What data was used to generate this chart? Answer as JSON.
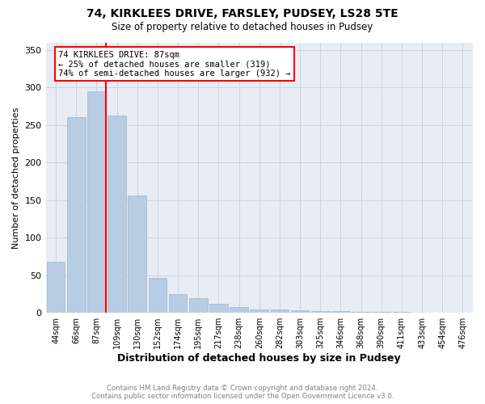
{
  "title1": "74, KIRKLEES DRIVE, FARSLEY, PUDSEY, LS28 5TE",
  "title2": "Size of property relative to detached houses in Pudsey",
  "xlabel": "Distribution of detached houses by size in Pudsey",
  "ylabel": "Number of detached properties",
  "categories": [
    "44sqm",
    "66sqm",
    "87sqm",
    "109sqm",
    "130sqm",
    "152sqm",
    "174sqm",
    "195sqm",
    "217sqm",
    "238sqm",
    "260sqm",
    "282sqm",
    "303sqm",
    "325sqm",
    "346sqm",
    "368sqm",
    "390sqm",
    "411sqm",
    "433sqm",
    "454sqm",
    "476sqm"
  ],
  "values": [
    68,
    260,
    295,
    263,
    156,
    47,
    25,
    20,
    12,
    8,
    5,
    4,
    3,
    2,
    2,
    1,
    1,
    1,
    0,
    0,
    0
  ],
  "highlight_index": 2,
  "bar_color": "#b8cce4",
  "vline_index": 2,
  "annotation_text": "74 KIRKLEES DRIVE: 87sqm\n← 25% of detached houses are smaller (319)\n74% of semi-detached houses are larger (932) →",
  "footer1": "Contains HM Land Registry data © Crown copyright and database right 2024.",
  "footer2": "Contains public sector information licensed under the Open Government Licence v3.0.",
  "ylim": [
    0,
    360
  ],
  "yticks": [
    0,
    50,
    100,
    150,
    200,
    250,
    300,
    350
  ]
}
